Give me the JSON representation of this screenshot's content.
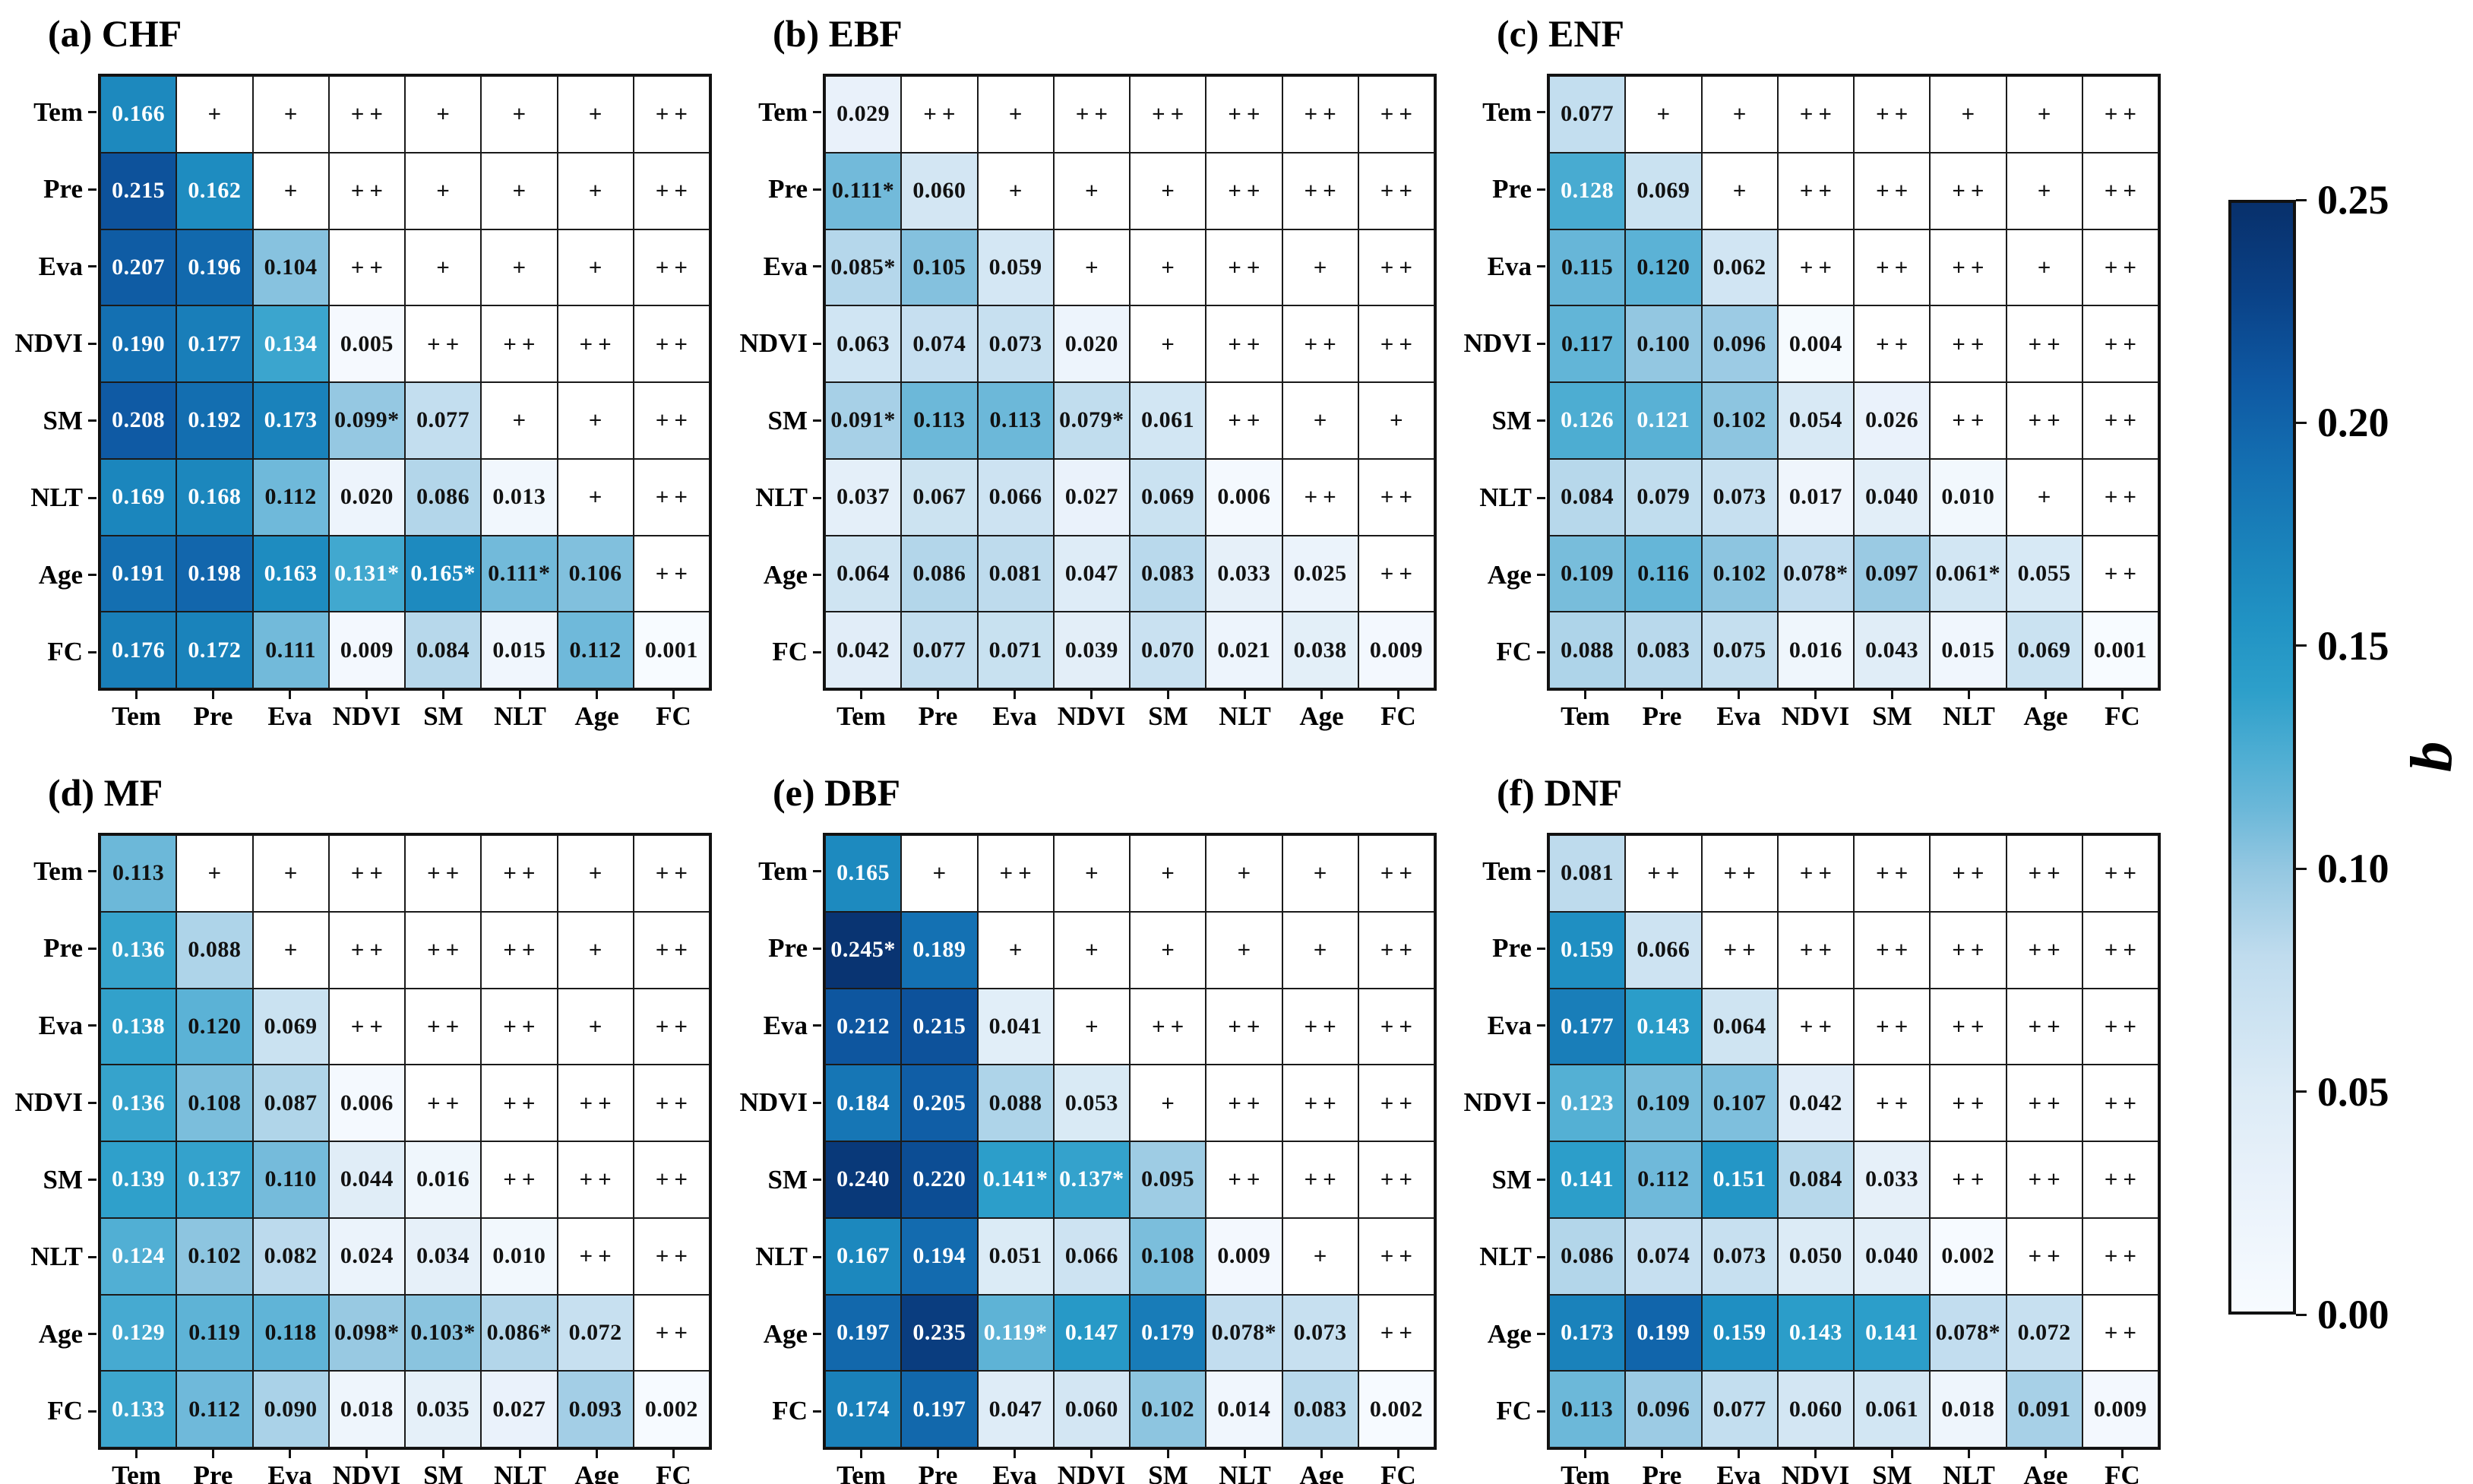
{
  "colors": {
    "background": "#ffffff",
    "grid_line": "#1a1a1a",
    "value_text_dark": "#111111",
    "value_text_light": "#ffffff"
  },
  "chart_data": {
    "type": "heatmap",
    "layout": "2 rows x 3 columns of lower-triangular correlation-style heatmaps; upper triangles contain significance symbols; shared vertical colorbar on the right",
    "variables": [
      "Tem",
      "Pre",
      "Eva",
      "NDVI",
      "SM",
      "NLT",
      "Age",
      "FC"
    ],
    "symbol_legend": [
      "+",
      "++"
    ],
    "colorbar": {
      "label": "q",
      "vmin": 0.0,
      "vmax": 0.25,
      "tick_labels": [
        "0.25",
        "0.20",
        "0.15",
        "0.10",
        "0.05",
        "0.00"
      ]
    },
    "colormap_stops": [
      [
        0.0,
        "#f7fbff"
      ],
      [
        0.03,
        "#e8f1fa"
      ],
      [
        0.05,
        "#dcebf6"
      ],
      [
        0.08,
        "#c0dcee"
      ],
      [
        0.1,
        "#93c7e1"
      ],
      [
        0.113,
        "#6cb8d9"
      ],
      [
        0.125,
        "#4faed3"
      ],
      [
        0.14,
        "#2d9fca"
      ],
      [
        0.155,
        "#2193c4"
      ],
      [
        0.17,
        "#1b85bc"
      ],
      [
        0.19,
        "#1470b2"
      ],
      [
        0.21,
        "#0e58a2"
      ],
      [
        0.23,
        "#0a4186"
      ],
      [
        0.25,
        "#08306b"
      ]
    ],
    "panels": [
      {
        "key": "a",
        "title": "(a) CHF",
        "white_text_min": 0.121,
        "matrix": [
          [
            "0.166",
            "+",
            "+",
            "++",
            "+",
            "+",
            "+",
            "++"
          ],
          [
            "0.215",
            "0.162",
            "+",
            "++",
            "+",
            "+",
            "+",
            "++"
          ],
          [
            "0.207",
            "0.196",
            "0.104",
            "++",
            "+",
            "+",
            "+",
            "++"
          ],
          [
            "0.190",
            "0.177",
            "0.134",
            "0.005",
            "++",
            "++",
            "++",
            "++"
          ],
          [
            "0.208",
            "0.192",
            "0.173",
            "0.099*",
            "0.077",
            "+",
            "+",
            "++"
          ],
          [
            "0.169",
            "0.168",
            "0.112",
            "0.020",
            "0.086",
            "0.013",
            "+",
            "++"
          ],
          [
            "0.191",
            "0.198",
            "0.163",
            "0.131*",
            "0.165*",
            "0.111*",
            "0.106",
            "++"
          ],
          [
            "0.176",
            "0.172",
            "0.111",
            "0.009",
            "0.084",
            "0.015",
            "0.112",
            "0.001"
          ]
        ]
      },
      {
        "key": "b",
        "title": "(b) EBF",
        "white_text_min": 0.121,
        "matrix": [
          [
            "0.029",
            "++",
            "+",
            "++",
            "++",
            "++",
            "++",
            "++"
          ],
          [
            "0.111*",
            "0.060",
            "+",
            "+",
            "+",
            "++",
            "++",
            "++"
          ],
          [
            "0.085*",
            "0.105",
            "0.059",
            "+",
            "+",
            "++",
            "+",
            "++"
          ],
          [
            "0.063",
            "0.074",
            "0.073",
            "0.020",
            "+",
            "++",
            "++",
            "++"
          ],
          [
            "0.091*",
            "0.113",
            "0.113",
            "0.079*",
            "0.061",
            "++",
            "+",
            "+"
          ],
          [
            "0.037",
            "0.067",
            "0.066",
            "0.027",
            "0.069",
            "0.006",
            "++",
            "++"
          ],
          [
            "0.064",
            "0.086",
            "0.081",
            "0.047",
            "0.083",
            "0.033",
            "0.025",
            "++"
          ],
          [
            "0.042",
            "0.077",
            "0.071",
            "0.039",
            "0.070",
            "0.021",
            "0.038",
            "0.009"
          ]
        ]
      },
      {
        "key": "c",
        "title": "(c) ENF",
        "white_text_min": 0.121,
        "matrix": [
          [
            "0.077",
            "+",
            "+",
            "++",
            "++",
            "+",
            "+",
            "++"
          ],
          [
            "0.128",
            "0.069",
            "+",
            "++",
            "++",
            "++",
            "+",
            "++"
          ],
          [
            "0.115",
            "0.120",
            "0.062",
            "++",
            "++",
            "++",
            "+",
            "++"
          ],
          [
            "0.117",
            "0.100",
            "0.096",
            "0.004",
            "++",
            "++",
            "++",
            "++"
          ],
          [
            "0.126",
            "0.121",
            "0.102",
            "0.054",
            "0.026",
            "++",
            "++",
            "++"
          ],
          [
            "0.084",
            "0.079",
            "0.073",
            "0.017",
            "0.040",
            "0.010",
            "+",
            "++"
          ],
          [
            "0.109",
            "0.116",
            "0.102",
            "0.078*",
            "0.097",
            "0.061*",
            "0.055",
            "++"
          ],
          [
            "0.088",
            "0.083",
            "0.075",
            "0.016",
            "0.043",
            "0.015",
            "0.069",
            "0.001"
          ]
        ]
      },
      {
        "key": "d",
        "title": "(d) MF",
        "white_text_min": 0.121,
        "matrix": [
          [
            "0.113",
            "+",
            "+",
            "++",
            "++",
            "++",
            "+",
            "++"
          ],
          [
            "0.136",
            "0.088",
            "+",
            "++",
            "++",
            "++",
            "+",
            "++"
          ],
          [
            "0.138",
            "0.120",
            "0.069",
            "++",
            "++",
            "++",
            "+",
            "++"
          ],
          [
            "0.136",
            "0.108",
            "0.087",
            "0.006",
            "++",
            "++",
            "++",
            "++"
          ],
          [
            "0.139",
            "0.137",
            "0.110",
            "0.044",
            "0.016",
            "++",
            "++",
            "++"
          ],
          [
            "0.124",
            "0.102",
            "0.082",
            "0.024",
            "0.034",
            "0.010",
            "++",
            "++"
          ],
          [
            "0.129",
            "0.119",
            "0.118",
            "0.098*",
            "0.103*",
            "0.086*",
            "0.072",
            "++"
          ],
          [
            "0.133",
            "0.112",
            "0.090",
            "0.018",
            "0.035",
            "0.027",
            "0.093",
            "0.002"
          ]
        ]
      },
      {
        "key": "e",
        "title": "(e) DBF",
        "white_text_min": 0.119,
        "matrix": [
          [
            "0.165",
            "+",
            "++",
            "+",
            "+",
            "+",
            "+",
            "++"
          ],
          [
            "0.245*",
            "0.189",
            "+",
            "+",
            "+",
            "+",
            "+",
            "++"
          ],
          [
            "0.212",
            "0.215",
            "0.041",
            "+",
            "++",
            "++",
            "++",
            "++"
          ],
          [
            "0.184",
            "0.205",
            "0.088",
            "0.053",
            "+",
            "++",
            "++",
            "++"
          ],
          [
            "0.240",
            "0.220",
            "0.141*",
            "0.137*",
            "0.095",
            "++",
            "++",
            "++"
          ],
          [
            "0.167",
            "0.194",
            "0.051",
            "0.066",
            "0.108",
            "0.009",
            "+",
            "++"
          ],
          [
            "0.197",
            "0.235",
            "0.119*",
            "0.147",
            "0.179",
            "0.078*",
            "0.073",
            "++"
          ],
          [
            "0.174",
            "0.197",
            "0.047",
            "0.060",
            "0.102",
            "0.014",
            "0.083",
            "0.002"
          ]
        ]
      },
      {
        "key": "f",
        "title": "(f) DNF",
        "white_text_min": 0.121,
        "matrix": [
          [
            "0.081",
            "++",
            "++",
            "++",
            "++",
            "++",
            "++",
            "++"
          ],
          [
            "0.159",
            "0.066",
            "++",
            "++",
            "++",
            "++",
            "++",
            "++"
          ],
          [
            "0.177",
            "0.143",
            "0.064",
            "++",
            "++",
            "++",
            "++",
            "++"
          ],
          [
            "0.123",
            "0.109",
            "0.107",
            "0.042",
            "++",
            "++",
            "++",
            "++"
          ],
          [
            "0.141",
            "0.112",
            "0.151",
            "0.084",
            "0.033",
            "++",
            "++",
            "++"
          ],
          [
            "0.086",
            "0.074",
            "0.073",
            "0.050",
            "0.040",
            "0.002",
            "++",
            "++"
          ],
          [
            "0.173",
            "0.199",
            "0.159",
            "0.143",
            "0.141",
            "0.078*",
            "0.072",
            "++"
          ],
          [
            "0.113",
            "0.096",
            "0.077",
            "0.060",
            "0.061",
            "0.018",
            "0.091",
            "0.009"
          ]
        ]
      }
    ]
  }
}
